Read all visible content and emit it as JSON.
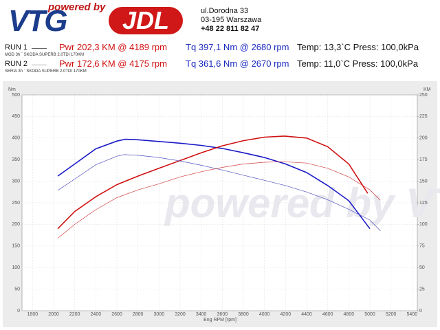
{
  "header": {
    "logo_powered_by": "powered by",
    "logo_vtg": "VTG",
    "logo_jdl": "JDL",
    "address": [
      "ul.Dorodna 33",
      "03-195 Warszawa",
      "+48 22 811 82 47"
    ],
    "watermark": "powered by VTG",
    "runs": [
      {
        "label": "RUN 1",
        "subtitle": "MOD 3h ` SKODA SUPERB 2.0TDI 170KM",
        "power": "Pwr  202,3 KM @ 4189 rpm",
        "torque": "Tq 397,1 Nm @ 2680 rpm",
        "conditions": "Temp: 13,3`C  Press: 100,0kPa"
      },
      {
        "label": "RUN 2",
        "subtitle": "SERIA 3h ` SKODA SUPERB 2.0TDI 170KM",
        "power": "Pwr  172,6 KM @ 4175 rpm",
        "torque": "Tq 361,6 Nm @ 2670 rpm",
        "conditions": "Temp: 11,0`C  Press: 100,0kPa"
      }
    ]
  },
  "chart_data": {
    "type": "line",
    "xlabel": "Eng RPM [rpm]",
    "ylabel": "Nm",
    "y2label": "KM",
    "xlim": [
      1700,
      5450
    ],
    "xticks": [
      1800,
      2000,
      2200,
      2400,
      2600,
      2800,
      3000,
      3200,
      3400,
      3600,
      3800,
      4000,
      4200,
      4400,
      4600,
      4800,
      5000,
      5200,
      5400
    ],
    "ylim": [
      0,
      500
    ],
    "yticks": [
      0,
      50,
      100,
      150,
      200,
      250,
      300,
      350,
      400,
      450,
      500
    ],
    "y2lim": [
      0,
      250
    ],
    "y2ticks": [
      0,
      25,
      50,
      75,
      100,
      125,
      150,
      175,
      200,
      225,
      250
    ],
    "grid": true,
    "series": [
      {
        "color": "#1a1ac8",
        "width": 1.6,
        "x": [
          2040,
          2200,
          2400,
          2600,
          2680,
          2800,
          3000,
          3200,
          3400,
          3600,
          3800,
          4000,
          4200,
          4400,
          4600,
          4800,
          5000
        ],
        "values": [
          312,
          340,
          375,
          393,
          397.1,
          396,
          392,
          388,
          383,
          376,
          366,
          355,
          340,
          320,
          290,
          255,
          190
        ]
      },
      {
        "color": "#d01010",
        "width": 1.6,
        "axis": "y2",
        "x": [
          2040,
          2200,
          2400,
          2600,
          2800,
          3000,
          3200,
          3400,
          3600,
          3800,
          4000,
          4189,
          4400,
          4600,
          4800,
          4980
        ],
        "values": [
          95,
          115,
          132,
          146,
          156,
          165,
          174,
          183,
          191,
          197,
          201,
          202.3,
          200,
          190,
          170,
          136
        ]
      },
      {
        "color": "#5050c0",
        "width": 0.7,
        "x": [
          2040,
          2200,
          2400,
          2600,
          2670,
          2800,
          3000,
          3200,
          3400,
          3600,
          3800,
          4000,
          4200,
          4400,
          4600,
          4800,
          5000,
          5100
        ],
        "values": [
          279,
          305,
          338,
          358,
          361.6,
          360,
          355,
          347,
          337,
          326,
          314,
          302,
          290,
          275,
          257,
          235,
          210,
          185
        ]
      },
      {
        "color": "#d04040",
        "width": 0.7,
        "axis": "y2",
        "x": [
          2040,
          2200,
          2400,
          2600,
          2800,
          3000,
          3200,
          3400,
          3600,
          3800,
          4000,
          4175,
          4400,
          4600,
          4800,
          5000,
          5100
        ],
        "values": [
          84,
          100,
          117,
          131,
          140,
          147,
          155,
          161,
          166,
          170,
          172,
          172.6,
          171,
          165,
          155,
          140,
          128
        ]
      }
    ]
  }
}
